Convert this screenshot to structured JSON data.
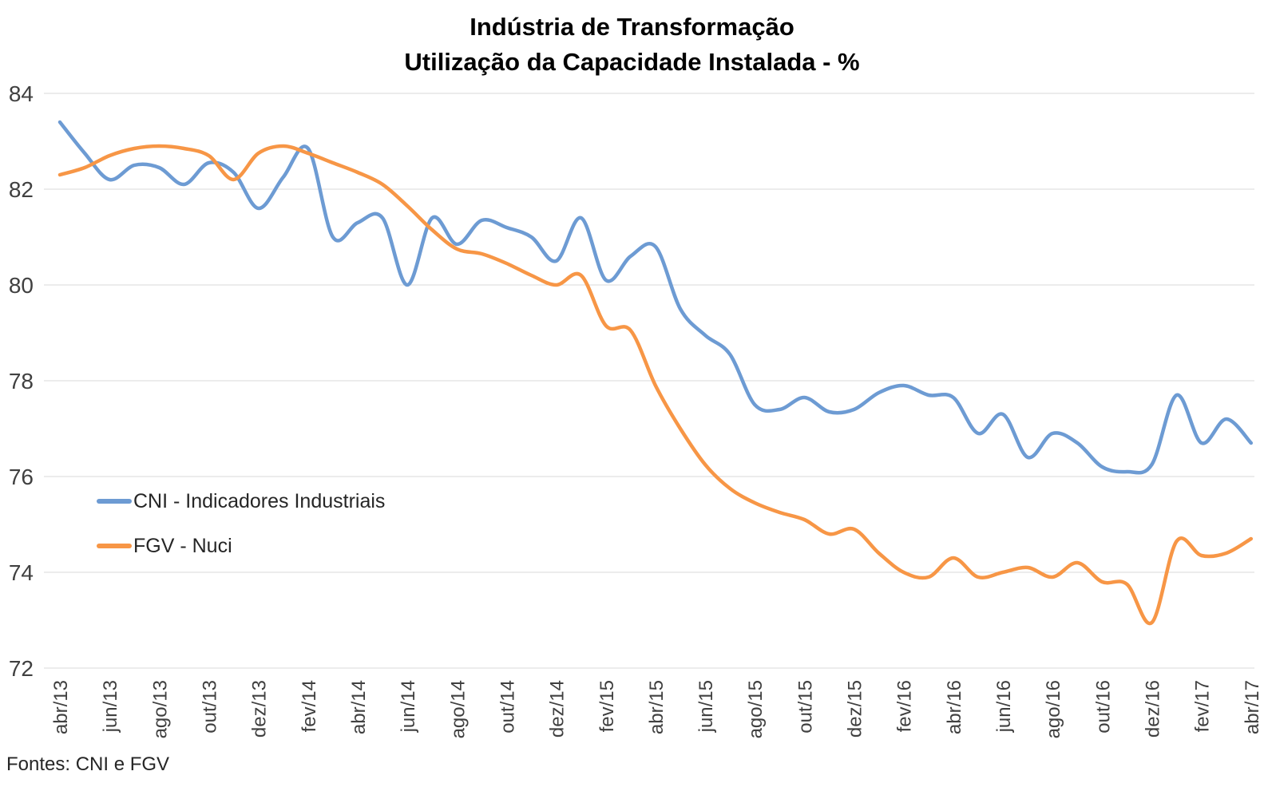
{
  "title": {
    "line1": "Indústria de Transformação",
    "line2": "Utilização da Capacidade Instalada - %"
  },
  "source_note": "Fontes: CNI e FGV",
  "legend": [
    {
      "label": "CNI - Indicadores Industriais",
      "color": "#6D9BD3"
    },
    {
      "label": "FGV - Nuci",
      "color": "#F79646"
    }
  ],
  "colors": {
    "cni_blue": "#6D9BD3",
    "fgv_orange": "#F79646",
    "gridline": "#D9D9D9",
    "axis_text": "#404040",
    "title_text": "#000000"
  },
  "chart_data": {
    "type": "line",
    "title": "Indústria de Transformação — Utilização da Capacidade Instalada - %",
    "smoothing": true,
    "grid": "horizontal",
    "legend_position": "inside-left",
    "ylim": [
      72,
      84
    ],
    "y_ticks": [
      72,
      74,
      76,
      78,
      80,
      82,
      84
    ],
    "x": [
      "abr/13",
      "mai/13",
      "jun/13",
      "jul/13",
      "ago/13",
      "set/13",
      "out/13",
      "nov/13",
      "dez/13",
      "jan/14",
      "fev/14",
      "mar/14",
      "abr/14",
      "mai/14",
      "jun/14",
      "jul/14",
      "ago/14",
      "set/14",
      "out/14",
      "nov/14",
      "dez/14",
      "jan/15",
      "fev/15",
      "mar/15",
      "abr/15",
      "mai/15",
      "jun/15",
      "jul/15",
      "ago/15",
      "set/15",
      "out/15",
      "nov/15",
      "dez/15",
      "jan/16",
      "fev/16",
      "mar/16",
      "abr/16",
      "mai/16",
      "jun/16",
      "jul/16",
      "ago/16",
      "set/16",
      "out/16",
      "nov/16",
      "dez/16",
      "jan/17",
      "fev/17",
      "mar/17",
      "abr/17"
    ],
    "x_tick_labels": [
      "abr/13",
      "jun/13",
      "ago/13",
      "out/13",
      "dez/13",
      "fev/14",
      "abr/14",
      "jun/14",
      "ago/14",
      "out/14",
      "dez/14",
      "fev/15",
      "abr/15",
      "jun/15",
      "ago/15",
      "out/15",
      "dez/15",
      "fev/16",
      "abr/16",
      "jun/16",
      "ago/16",
      "out/16",
      "dez/16",
      "fev/17",
      "abr/17"
    ],
    "series": [
      {
        "name": "CNI - Indicadores Industriais",
        "color": "#6D9BD3",
        "values": [
          83.4,
          82.75,
          82.2,
          82.5,
          82.45,
          82.1,
          82.55,
          82.35,
          81.6,
          82.25,
          82.85,
          81.0,
          81.3,
          81.4,
          80.0,
          81.4,
          80.85,
          81.35,
          81.2,
          81.0,
          80.5,
          81.4,
          80.1,
          80.6,
          80.8,
          79.5,
          78.95,
          78.55,
          77.5,
          77.4,
          77.65,
          77.35,
          77.4,
          77.75,
          77.9,
          77.7,
          77.65,
          76.9,
          77.3,
          76.4,
          76.9,
          76.7,
          76.2,
          76.1,
          76.25,
          77.7,
          76.7,
          77.2,
          76.7
        ]
      },
      {
        "name": "FGV - Nuci",
        "color": "#F79646",
        "values": [
          82.3,
          82.45,
          82.7,
          82.85,
          82.9,
          82.85,
          82.7,
          82.2,
          82.75,
          82.9,
          82.75,
          82.55,
          82.35,
          82.1,
          81.65,
          81.15,
          80.75,
          80.65,
          80.45,
          80.2,
          80.0,
          80.2,
          79.15,
          79.05,
          77.9,
          77.0,
          76.25,
          75.75,
          75.45,
          75.25,
          75.1,
          74.8,
          74.9,
          74.4,
          74.0,
          73.9,
          74.3,
          73.9,
          74.0,
          74.1,
          73.9,
          74.2,
          73.8,
          73.75,
          72.95,
          74.65,
          74.35,
          74.4,
          74.7
        ]
      }
    ]
  }
}
